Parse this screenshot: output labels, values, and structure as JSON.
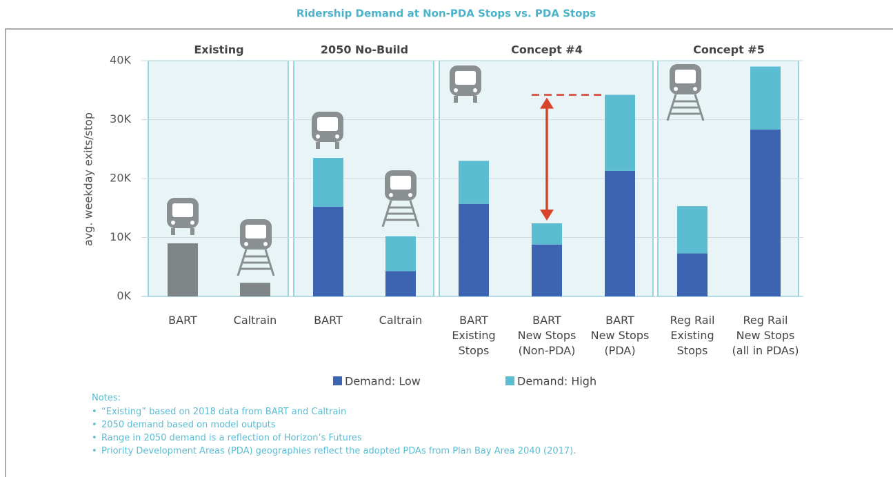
{
  "chart_data": {
    "type": "stacked_bar",
    "title": "Ridership Demand at Non-PDA Stops vs. PDA Stops",
    "ylabel": "avg. weekday exits/stop",
    "groups": [
      {
        "label": "Existing",
        "categories": [
          "BART",
          "Caltrain"
        ]
      },
      {
        "label": "2050 No-Build",
        "categories": [
          "BART",
          "Caltrain"
        ]
      },
      {
        "label": "Concept #4",
        "categories": [
          "BART\nExisting\nStops",
          "BART\nNew Stops\n(Non-PDA)",
          "BART\nNew Stops\n(PDA)"
        ]
      },
      {
        "label": "Concept #5",
        "categories": [
          "Reg Rail\nExisting\nStops",
          "Reg Rail\nNew Stops\n(all in PDAs)"
        ]
      }
    ],
    "series": [
      {
        "name": "Demand: Low",
        "color": "#3d64b0",
        "point_colors": [
          "#7f8486",
          "#7f8486",
          "#3d64b0",
          "#3d64b0",
          "#3d64b0",
          "#3d64b0",
          "#3d64b0",
          "#3d64b0",
          "#3d64b0"
        ],
        "values": [
          9000,
          2300,
          15200,
          4300,
          15700,
          8800,
          21300,
          7300,
          28300
        ]
      },
      {
        "name": "Demand: High",
        "color": "#5bbcd2",
        "values": [
          null,
          null,
          8300,
          5900,
          7300,
          3600,
          12900,
          8000,
          10700
        ]
      }
    ],
    "ylim": [
      0,
      40000
    ],
    "yticks": [
      {
        "value": 0,
        "label": "0K"
      },
      {
        "value": 10000,
        "label": "10K"
      },
      {
        "value": 20000,
        "label": "20K"
      },
      {
        "value": 30000,
        "label": "30K"
      },
      {
        "value": 40000,
        "label": "40K"
      }
    ],
    "grid": true,
    "notes_title": "Notes:",
    "notes": [
      "“Existing” based on 2018 data from BART and Caltrain",
      "2050 demand based on model outputs",
      "Range in 2050 demand is a reflection of Horizon’s Futures",
      "Priority Development Areas (PDA) geographies reflect the adopted PDAs from Plan Bay Area 2040 (2017)."
    ]
  }
}
